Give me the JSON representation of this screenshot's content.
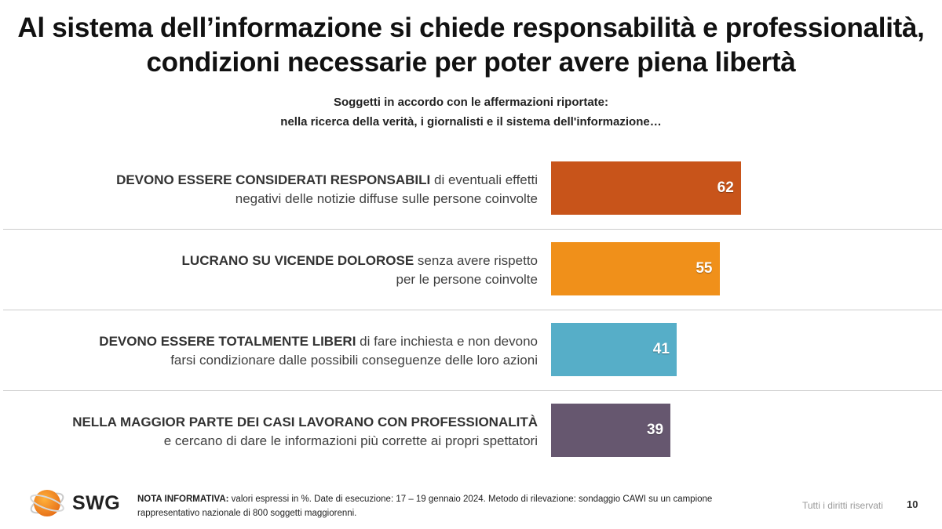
{
  "title_line1": "Al sistema dell’informazione si chiede responsabilità e professionalità,",
  "title_line2": "condizioni necessarie per poter avere piena libertà",
  "subtitle_line1": "Soggetti in accordo con le affermazioni riportate:",
  "subtitle_line2": "nella ricerca della verità, i giornalisti e il sistema dell'informazione…",
  "chart_data": {
    "type": "bar",
    "orientation": "horizontal",
    "title": "",
    "xlabel": "",
    "ylabel": "",
    "xlim": [
      0,
      100
    ],
    "grid": false,
    "categories": [
      {
        "bold": "DEVONO ESSERE CONSIDERATI RESPONSABILI",
        "rest_line1": " di eventuali effetti",
        "line2": "negativi delle notizie diffuse sulle persone coinvolte"
      },
      {
        "bold": "LUCRANO SU VICENDE DOLOROSE",
        "rest_line1": " senza avere rispetto",
        "line2": "per le persone coinvolte"
      },
      {
        "bold": "DEVONO ESSERE TOTALMENTE LIBERI",
        "rest_line1": " di fare inchiesta e non devono",
        "line2": "farsi condizionare dalle possibili conseguenze delle loro azioni"
      },
      {
        "bold": "NELLA MAGGIOR PARTE DEI CASI LAVORANO CON PROFESSIONALITÀ",
        "rest_line1": "",
        "line2": "e cercano di dare le informazioni più corrette ai propri spettatori"
      }
    ],
    "values": [
      62,
      55,
      41,
      39
    ],
    "colors": [
      "#c8541a",
      "#f0901a",
      "#56aec8",
      "#66576f"
    ]
  },
  "footer": {
    "logo_text": "SWG",
    "note_label": "NOTA INFORMATIVA:",
    "note_line1": " valori espressi in %. Date di esecuzione: 17 – 19 gennaio 2024. Metodo di rilevazione: sondaggio CAWI su un campione",
    "note_line2": "rappresentativo nazionale di 800 soggetti maggiorenni.",
    "rights": "Tutti i diritti riservati",
    "page_number": "10"
  }
}
